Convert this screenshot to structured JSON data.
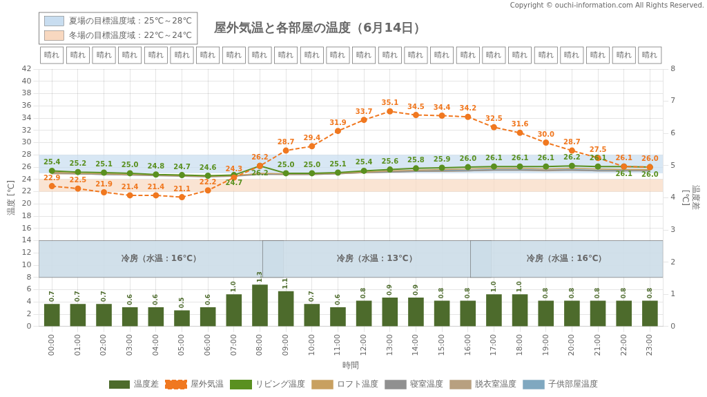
{
  "chart_data": {
    "type": "line",
    "title": "屋外気温と各部屋の温度（6月14日）",
    "annotations": [
      "Copyright © ouchi-information.com All Rights Reserved."
    ],
    "x_label": "時間",
    "y_label": "温度 [℃]",
    "y2_label": "温度差\n[℃]",
    "categories": [
      "00:00",
      "01:00",
      "02:00",
      "03:00",
      "04:00",
      "05:00",
      "06:00",
      "07:00",
      "08:00",
      "09:00",
      "10:00",
      "11:00",
      "12:00",
      "13:00",
      "14:00",
      "15:00",
      "16:00",
      "17:00",
      "18:00",
      "19:00",
      "20:00",
      "21:00",
      "22:00",
      "23:00"
    ],
    "weather": [
      "晴れ",
      "晴れ",
      "晴れ",
      "晴れ",
      "晴れ",
      "晴れ",
      "晴れ",
      "晴れ",
      "晴れ",
      "晴れ",
      "晴れ",
      "晴れ",
      "晴れ",
      "晴れ",
      "晴れ",
      "晴れ",
      "晴れ",
      "晴れ",
      "晴れ",
      "晴れ",
      "晴れ",
      "晴れ",
      "晴れ",
      "晴れ"
    ],
    "series": [
      {
        "name": "温度差",
        "type": "bar",
        "axis": "y2",
        "color": "#4D6B2C",
        "data_labels": true,
        "values": [
          0.7,
          0.7,
          0.7,
          0.6,
          0.6,
          0.5,
          0.6,
          1.0,
          1.3,
          1.1,
          0.7,
          0.6,
          0.8,
          0.9,
          0.9,
          0.8,
          0.8,
          1.0,
          1.0,
          0.8,
          0.8,
          0.8,
          0.8,
          0.8
        ],
        "value_labels": [
          "0.7",
          "0.7",
          "0.7",
          "0.6",
          "0.6",
          "0.5",
          "0.6",
          "1.0",
          "1.3",
          "1.1",
          "0.7",
          "0.6",
          "0.8",
          "0.9",
          "0.9",
          "0.8",
          "0.8",
          "1.0",
          "1.0",
          "0.8",
          "0.8",
          "0.8",
          "0.8",
          "0.8"
        ]
      },
      {
        "name": "屋外気温",
        "color": "#F07820",
        "line_style": "dashed",
        "marker": "circle",
        "data_labels": true,
        "values": [
          22.9,
          22.5,
          21.9,
          21.4,
          21.4,
          21.1,
          22.2,
          24.3,
          26.2,
          28.7,
          29.4,
          31.9,
          33.7,
          35.1,
          34.5,
          34.4,
          34.2,
          32.5,
          31.6,
          30.0,
          28.7,
          27.5,
          26.1,
          26.0
        ],
        "value_labels": [
          "22.9",
          "22.5",
          "21.9",
          "21.4",
          "21.4",
          "21.1",
          "22.2",
          "24.3",
          "26.2",
          "28.7",
          "29.4",
          "31.9",
          "33.7",
          "35.1",
          "34.5",
          "34.4",
          "34.2",
          "32.5",
          "31.6",
          "30.0",
          "28.7",
          "27.5",
          "26.1",
          "26.0"
        ]
      },
      {
        "name": "リビング温度",
        "color": "#5A9020",
        "line_style": "solid",
        "marker": "circle",
        "data_labels": true,
        "values": [
          25.4,
          25.2,
          25.1,
          25.0,
          24.8,
          24.7,
          24.6,
          24.7,
          26.2,
          25.0,
          25.0,
          25.1,
          25.4,
          25.6,
          25.8,
          25.9,
          26.0,
          26.1,
          26.1,
          26.1,
          26.2,
          26.1,
          26.1,
          26.0
        ],
        "value_labels": [
          "25.4",
          "25.2",
          "25.1",
          "25.0",
          "24.8",
          "24.7",
          "24.6",
          "24.7",
          "26.2",
          "25.0",
          "25.0",
          "25.1",
          "25.4",
          "25.6",
          "25.8",
          "25.9",
          "26.0",
          "26.1",
          "26.1",
          "26.1",
          "26.2",
          "26.1",
          "26.1",
          "26.0"
        ]
      },
      {
        "name": "ロフト温度",
        "color": "#C8A060",
        "line_style": "solid",
        "marker": "none",
        "values": [
          25.2,
          25.0,
          24.9,
          24.8,
          24.7,
          24.6,
          24.5,
          24.6,
          25.0,
          24.9,
          24.9,
          25.0,
          25.2,
          25.4,
          25.5,
          25.6,
          25.7,
          25.8,
          25.8,
          25.7,
          25.8,
          25.7,
          25.6,
          25.6
        ]
      },
      {
        "name": "寝室温度",
        "color": "#909090",
        "line_style": "solid",
        "marker": "none",
        "values": [
          25.1,
          24.9,
          24.8,
          24.7,
          24.6,
          24.5,
          24.4,
          24.5,
          24.8,
          24.8,
          24.8,
          24.9,
          25.1,
          25.2,
          25.3,
          25.4,
          25.4,
          25.5,
          25.5,
          25.5,
          25.5,
          25.4,
          25.4,
          25.4
        ]
      },
      {
        "name": "脱衣室温度",
        "color": "#B8A080",
        "line_style": "solid",
        "marker": "none",
        "values": [
          24.9,
          24.9,
          24.9,
          24.8,
          24.7,
          24.6,
          24.5,
          24.6,
          24.9,
          24.8,
          24.8,
          24.9,
          25.1,
          25.2,
          25.3,
          25.3,
          25.4,
          25.5,
          25.5,
          25.4,
          25.5,
          25.4,
          25.4,
          25.5
        ]
      },
      {
        "name": "子供部屋温度",
        "color": "#80A8C0",
        "line_style": "solid",
        "marker": "none",
        "values": [
          25.0,
          24.9,
          24.8,
          24.7,
          24.7,
          24.6,
          24.5,
          24.6,
          24.9,
          24.9,
          24.9,
          25.0,
          25.2,
          25.3,
          25.4,
          25.5,
          25.5,
          25.6,
          25.6,
          25.5,
          25.6,
          25.5,
          25.5,
          25.5
        ]
      }
    ],
    "y_bands": [
      {
        "from": 25,
        "to": 28,
        "label": "夏場の目標温度域：25℃～28℃",
        "color": "#C8DDF0"
      },
      {
        "from": 22,
        "to": 24,
        "label": "冬場の目標温度域：22℃～24℃",
        "color": "#F8D8C0"
      }
    ],
    "x_bands": [
      {
        "start": 0,
        "end": 8.4,
        "from": 8,
        "to": 14,
        "label": "冷房（水温：16℃）",
        "color": "#CCDDE8"
      },
      {
        "start": 8.6,
        "end": 16.4,
        "from": 8,
        "to": 14,
        "label": "冷房（水温：13℃）",
        "color": "#CCDDE8"
      },
      {
        "start": 16.6,
        "end": 23,
        "from": 8,
        "to": 14,
        "label": "冷房（水温：16℃）",
        "color": "#CCDDE8"
      }
    ],
    "ylim": [
      0,
      42
    ],
    "yticks": [
      0,
      2,
      4,
      6,
      8,
      10,
      12,
      14,
      16,
      18,
      20,
      22,
      24,
      26,
      28,
      30,
      32,
      34,
      36,
      38,
      40,
      42
    ],
    "y2lim": [
      0,
      8
    ],
    "y2ticks": [
      0,
      1,
      2,
      3,
      4,
      5,
      6,
      7,
      8
    ],
    "grid": true,
    "legend": "bottom"
  }
}
